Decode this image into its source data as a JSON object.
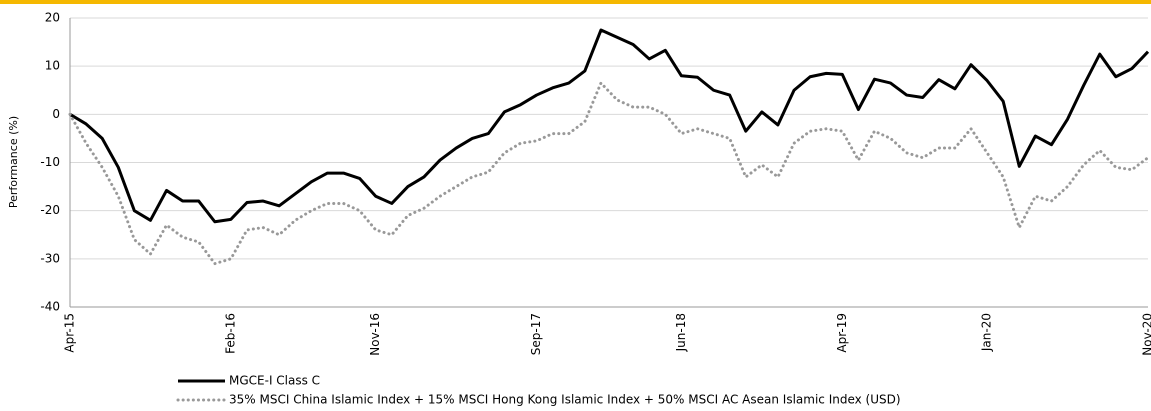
{
  "chart_data": {
    "type": "line",
    "ylabel": "Performance (%)",
    "categories": [
      "Apr-15",
      null,
      null,
      null,
      null,
      null,
      null,
      null,
      null,
      null,
      "Feb-16",
      null,
      null,
      null,
      null,
      null,
      null,
      null,
      null,
      "Nov-16",
      null,
      null,
      null,
      null,
      null,
      null,
      null,
      null,
      null,
      "Sep-17",
      null,
      null,
      null,
      null,
      null,
      null,
      null,
      null,
      "Jun-18",
      null,
      null,
      null,
      null,
      null,
      null,
      null,
      null,
      null,
      "Apr-19",
      null,
      null,
      null,
      null,
      null,
      null,
      null,
      null,
      "Jan-20",
      null,
      null,
      null,
      null,
      null,
      null,
      null,
      null,
      null,
      "Nov-20"
    ],
    "series": [
      {
        "name": "MGCE-I Class C",
        "color": "#000000",
        "style": "solid",
        "values": [
          0,
          -2,
          -5,
          -11,
          -20,
          -22,
          -15.8,
          -18,
          -18,
          -22.3,
          -21.8,
          -18.3,
          -18,
          -19,
          -16.5,
          -14,
          -12.2,
          -12.2,
          -13.3,
          -17,
          -18.5,
          -15,
          -13,
          -9.5,
          -7,
          -5,
          -4,
          0.5,
          2,
          4,
          5.5,
          6.5,
          9,
          17.5,
          16,
          14.5,
          11.5,
          13.3,
          8,
          7.7,
          5,
          4,
          -3.5,
          0.5,
          -2.2,
          5,
          7.8,
          8.5,
          8.3,
          1,
          7.3,
          6.5,
          4,
          3.5,
          7.2,
          5.3,
          10.3,
          7,
          2.7,
          -10.8,
          -4.5,
          -6.3,
          -1,
          6,
          12.5,
          7.8,
          9.5,
          13
        ]
      },
      {
        "name": "35% MSCI China Islamic Index + 15% MSCI Hong Kong Islamic Index + 50% MSCI AC Asean Islamic Index (USD)",
        "color": "#999999",
        "style": "dotted",
        "values": [
          0,
          -6,
          -11,
          -17,
          -26,
          -29,
          -23,
          -25.5,
          -26.5,
          -31,
          -30,
          -24,
          -23.5,
          -25,
          -22,
          -20,
          -18.5,
          -18.5,
          -20,
          -24,
          -25,
          -21,
          -19.5,
          -17,
          -15,
          -13,
          -12,
          -8,
          -6,
          -5.5,
          -4,
          -4,
          -1.5,
          6.5,
          3,
          1.5,
          1.5,
          0,
          -4,
          -3,
          -4,
          -5,
          -13,
          -10.5,
          -13,
          -6,
          -3.5,
          -3,
          -3.5,
          -9.5,
          -3.5,
          -5,
          -8,
          -9,
          -7,
          -7,
          -3,
          -8,
          -13,
          -23.5,
          -17,
          -18,
          -15,
          -10.5,
          -7.5,
          -11,
          -11.5,
          -9
        ]
      }
    ],
    "ylim": [
      -40,
      20
    ],
    "yticks": [
      -40,
      -30,
      -20,
      -10,
      0,
      10,
      20
    ],
    "grid": true
  }
}
